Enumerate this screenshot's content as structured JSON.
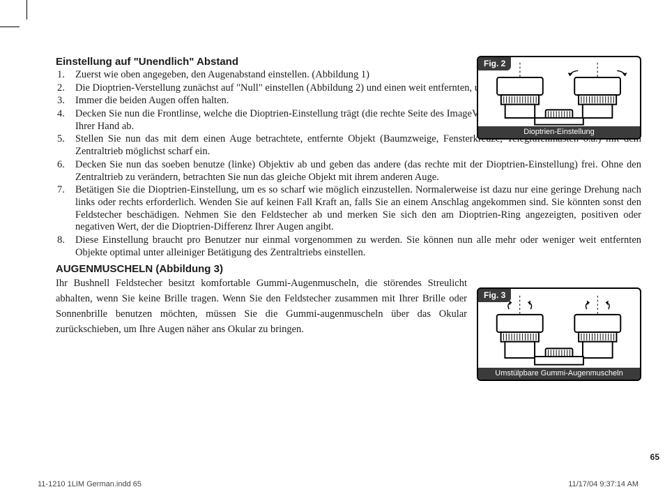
{
  "colors": {
    "text": "#1c1c1c",
    "figure_bar_bg": "#3b3b3b",
    "figure_bar_text": "#ffffff",
    "page_bg": "#ffffff",
    "footer_text": "#444444"
  },
  "typography": {
    "body_font": "Georgia, Times New Roman, serif",
    "ui_font": "Arial, Helvetica, sans-serif",
    "heading_size_pt": 11,
    "body_size_pt": 11,
    "figure_label_size_pt": 9,
    "figure_caption_size_pt": 8
  },
  "page_number": "65",
  "footer": {
    "left": "11-1210 1LIM German.indd   65",
    "right": "11/17/04   9:37:14 AM"
  },
  "section1": {
    "heading": "Einstellung auf \"Unendlich\" Abstand",
    "items": [
      "Zuerst wie oben angegeben, den Augenabstand einstellen. (Abbildung 1)",
      "Die Dioptrien-Verstellung zunächst auf \"Null\" einstellen (Abbildung 2) und einen weit entfernten, unbewegten Gegenstand anvisieren.",
      "Immer die beiden Augen offen halten.",
      "Decken Sie nun die Frontlinse, welche die Dioptrien-Einstellung trägt (die rechte Seite des ImageView) mit einem Objektivdeckel oder mit Ihrer Hand ab.",
      "Stellen Sie nun das mit dem einen Auge betrachtete, entfernte Objekt (Baumzweige, Fensterkreuze, Telegrafenmasten o.ä.) mit dem Zentraltrieb möglichst scharf ein.",
      "Decken Sie nun das soeben benutze (linke) Objektiv ab und geben das andere (das rechte mit der Dioptrien-Einstellung) frei. Ohne den Zentraltrieb zu verändern, betrachten Sie nun das gleiche Objekt mit ihrem anderen Auge.",
      "Betätigen Sie die Dioptrien-Einstellung, um es so scharf wie möglich einzustellen. Normalerweise ist dazu nur eine geringe Drehung nach links oder rechts erforderlich. Wenden Sie auf keinen Fall Kraft an, falls Sie an einem Anschlag angekommen sind. Sie könnten sonst den Feldstecher beschädigen. Nehmen Sie den Feldstecher ab und merken Sie sich den am Dioptrien-Ring angezeigten, positiven oder negativen Wert, der die Dioptrien-Differenz Ihrer Augen angibt.",
      "Diese Einstellung braucht pro Benutzer nur einmal vorgenommen zu werden. Sie können nun alle mehr oder weniger weit entfernten Objekte optimal unter alleiniger Betätigung des Zentraltriebs einstellen."
    ],
    "narrow_count": 4
  },
  "section2": {
    "heading": "AUGENMUSCHELN (Abbildung 3)",
    "paragraph": "Ihr Bushnell Feldstecher besitzt komfortable Gummi-Augenmuscheln, die störendes Streulicht abhalten, wenn Sie keine Brille tragen. Wenn Sie den Feldstecher zusammen mit Ihrer Brille oder Sonnenbrille benutzen möchten, müssen Sie die Gummi-augenmuscheln über das Okular zurückschieben, um Ihre Augen näher ans Okular zu bringen."
  },
  "figures": {
    "fig2": {
      "label": "Fig. 2",
      "caption": "Dioptrien-Einstellung"
    },
    "fig3": {
      "label": "Fig. 3",
      "caption": "Umstülpbare Gummi-Augenmuscheln"
    }
  }
}
